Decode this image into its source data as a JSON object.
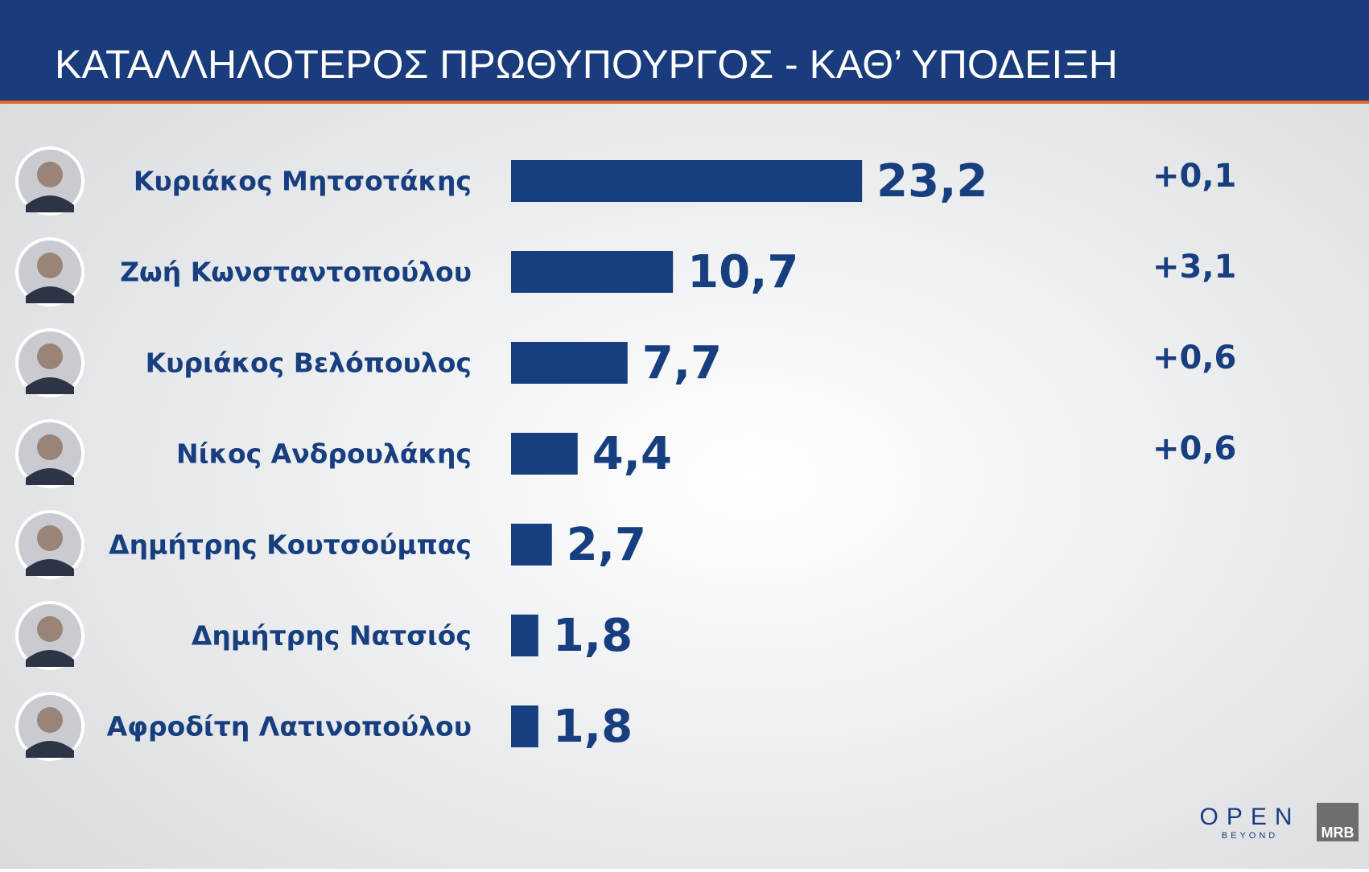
{
  "chart_data": {
    "type": "bar",
    "orientation": "horizontal",
    "title": "ΚΑΤΑΛΛΗΛΟΤΕΡΟΣ  ΠΡΩΘΥΠΟΥΡΓΟΣ - ΚΑΘ’ ΥΠΟΔΕΙΞΗ",
    "categories": [
      "Κυριάκος Μητσοτάκης",
      "Ζωή Κωνσταντοπούλου",
      "Κυριάκος Βελόπουλος",
      "Νίκος Ανδρουλάκης",
      "Δημήτρης Κουτσούμπας",
      "Δημήτρης Νατσιός",
      "Αφροδίτη Λατινοπούλου"
    ],
    "values": [
      23.2,
      10.7,
      7.7,
      4.4,
      2.7,
      1.8,
      1.8
    ],
    "value_labels": [
      "23,2",
      "10,7",
      "7,7",
      "4,4",
      "2,7",
      "1,8",
      "1,8"
    ],
    "changes": [
      "+0,1",
      "+3,1",
      "+0,6",
      "+0,6"
    ],
    "color": "#173f7f"
  },
  "logos": {
    "channel": "OPEN",
    "tagline": "BEYOND",
    "pollster": "MRB"
  }
}
